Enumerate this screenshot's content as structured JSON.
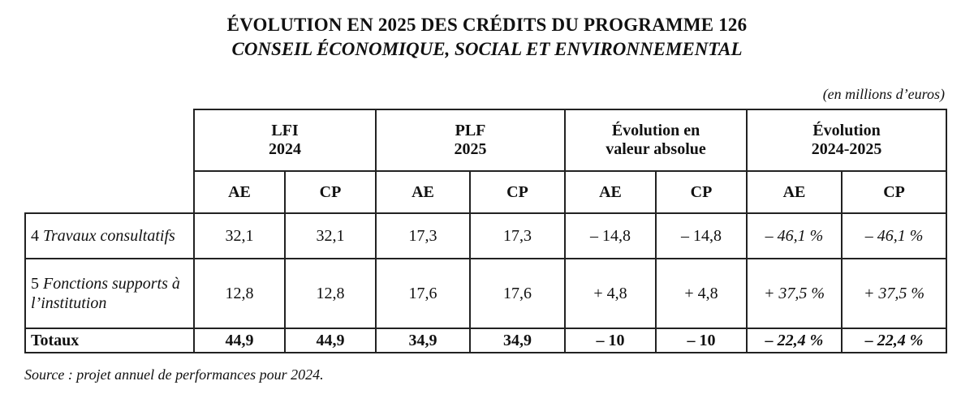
{
  "title_line1": "ÉVOLUTION EN 2025 DES CRÉDITS DU PROGRAMME 126",
  "title_line2": "CONSEIL ÉCONOMIQUE, SOCIAL ET ENVIRONNEMENTAL",
  "unit_note": "(en millions d’euros)",
  "table": {
    "group_headers": [
      {
        "line1": "LFI",
        "line2": "2024"
      },
      {
        "line1": "PLF",
        "line2": "2025"
      },
      {
        "line1": "Évolution en",
        "line2": "valeur absolue"
      },
      {
        "line1": "Évolution",
        "line2": "2024-2025"
      }
    ],
    "sub_headers": [
      "AE",
      "CP",
      "AE",
      "CP",
      "AE",
      "CP",
      "AE",
      "CP"
    ],
    "rows": [
      {
        "num": "4",
        "label": "Travaux consultatifs",
        "values": [
          "32,1",
          "32,1",
          "17,3",
          "17,3",
          "– 14,8",
          "– 14,8",
          "– 46,1 %",
          "– 46,1 %"
        ]
      },
      {
        "num": "5",
        "label": "Fonctions supports à l’institution",
        "values": [
          "12,8",
          "12,8",
          "17,6",
          "17,6",
          "+ 4,8",
          "+ 4,8",
          "+ 37,5 %",
          "+ 37,5 %"
        ]
      }
    ],
    "total": {
      "label": "Totaux",
      "values": [
        "44,9",
        "44,9",
        "34,9",
        "34,9",
        "– 10",
        "– 10",
        "– 22,4 %",
        "– 22,4 %"
      ]
    }
  },
  "source": "Source : projet annuel de performances pour 2024."
}
